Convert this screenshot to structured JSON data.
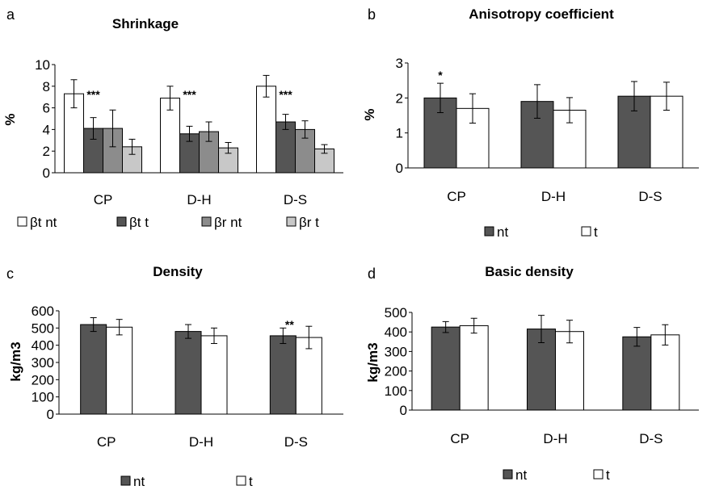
{
  "chart_data": [
    {
      "panel_label": "a",
      "type": "bar",
      "title": "Shrinkage",
      "ylabel": "%",
      "xlabel": "",
      "ylim": [
        0,
        10
      ],
      "yticks": [
        "0",
        "2",
        "4",
        "6",
        "8",
        "10"
      ],
      "categories": [
        "CP",
        "D-H",
        "D-S"
      ],
      "series": [
        {
          "name": "βt nt",
          "color": "#ffffff",
          "values": [
            7.3,
            6.9,
            8.0
          ],
          "errors": [
            1.3,
            1.1,
            1.0
          ]
        },
        {
          "name": "βt t",
          "color": "#555555",
          "values": [
            4.1,
            3.6,
            4.7
          ],
          "errors": [
            1.0,
            0.7,
            0.7
          ]
        },
        {
          "name": "βr nt",
          "color": "#8c8c8c",
          "values": [
            4.1,
            3.8,
            4.0
          ],
          "errors": [
            1.7,
            0.9,
            0.8
          ]
        },
        {
          "name": "βr  t",
          "color": "#c8c8c8",
          "values": [
            2.4,
            2.3,
            2.2
          ],
          "errors": [
            0.7,
            0.5,
            0.4
          ]
        }
      ],
      "annotations": [
        "***",
        "***",
        "***"
      ],
      "grid": false,
      "legend": "bottom"
    },
    {
      "panel_label": "b",
      "type": "bar",
      "title": "Anisotropy  coefficient",
      "ylabel": "%",
      "xlabel": "",
      "ylim": [
        0,
        3
      ],
      "yticks": [
        "0",
        "1",
        "2",
        "3"
      ],
      "categories": [
        "CP",
        "D-H",
        "D-S"
      ],
      "series": [
        {
          "name": "nt",
          "color": "#555555",
          "values": [
            2.0,
            1.9,
            2.05
          ],
          "errors": [
            0.42,
            0.48,
            0.42
          ]
        },
        {
          "name": "t",
          "color": "#ffffff",
          "values": [
            1.7,
            1.65,
            2.05
          ],
          "errors": [
            0.42,
            0.36,
            0.4
          ]
        }
      ],
      "annotations": [
        "*",
        "",
        ""
      ],
      "grid": false,
      "legend": "bottom"
    },
    {
      "panel_label": "c",
      "type": "bar",
      "title": "Density",
      "ylabel": "kg/m3",
      "xlabel": "",
      "ylim": [
        0,
        600
      ],
      "yticks": [
        "0",
        "100",
        "200",
        "300",
        "400",
        "500",
        "600"
      ],
      "categories": [
        "CP",
        "D-H",
        "D-S"
      ],
      "series": [
        {
          "name": "nt",
          "color": "#555555",
          "values": [
            520,
            480,
            455
          ],
          "errors": [
            40,
            40,
            45
          ]
        },
        {
          "name": "t",
          "color": "#ffffff",
          "values": [
            505,
            455,
            445
          ],
          "errors": [
            45,
            45,
            65
          ]
        }
      ],
      "annotations": [
        "",
        "",
        "**"
      ],
      "grid": false,
      "legend": "bottom"
    },
    {
      "panel_label": "d",
      "type": "bar",
      "title": "Basic density",
      "ylabel": "kg/m3",
      "xlabel": "",
      "ylim": [
        0,
        500
      ],
      "yticks": [
        "0",
        "100",
        "200",
        "300",
        "400",
        "500"
      ],
      "categories": [
        "CP",
        "D-H",
        "D-S"
      ],
      "series": [
        {
          "name": "nt",
          "color": "#555555",
          "values": [
            425,
            415,
            375
          ],
          "errors": [
            28,
            70,
            48
          ]
        },
        {
          "name": "t",
          "color": "#ffffff",
          "values": [
            432,
            402,
            385
          ],
          "errors": [
            38,
            58,
            52
          ]
        }
      ],
      "annotations": [
        "",
        "",
        ""
      ],
      "grid": false,
      "legend": "bottom"
    }
  ]
}
